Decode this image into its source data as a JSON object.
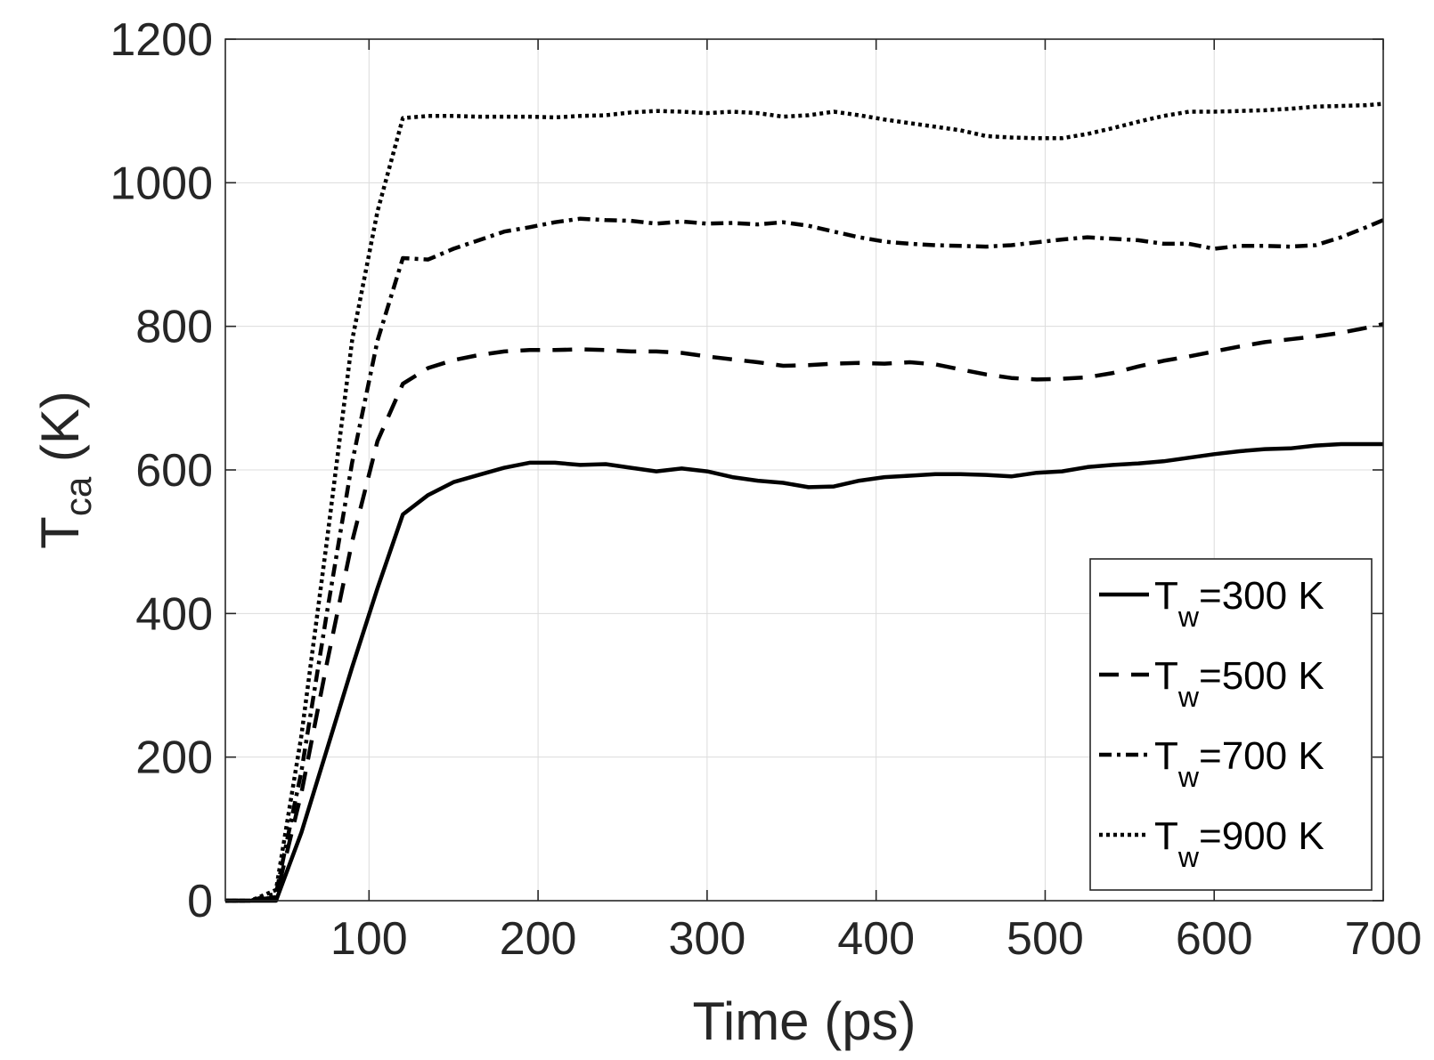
{
  "chart_data": {
    "type": "line",
    "title": "",
    "xlabel": "Time (ps)",
    "ylabel_main": "T",
    "ylabel_sub": "ca",
    "ylabel_unit": " (K)",
    "xlim": [
      15,
      700
    ],
    "ylim": [
      0,
      1200
    ],
    "xticks": [
      100,
      200,
      300,
      400,
      500,
      600,
      700
    ],
    "yticks": [
      0,
      200,
      400,
      600,
      800,
      1000,
      1200
    ],
    "grid": true,
    "legend_position": "bottom-right",
    "series": [
      {
        "name": "Tw=300 K",
        "legend_main": "T",
        "legend_sub": "w",
        "legend_rest": "=300 K",
        "style": "solid",
        "x": [
          15,
          30,
          45,
          60,
          75,
          90,
          105,
          120,
          135,
          150,
          165,
          180,
          195,
          210,
          225,
          240,
          255,
          270,
          285,
          300,
          315,
          330,
          345,
          360,
          375,
          390,
          405,
          420,
          435,
          450,
          465,
          480,
          495,
          510,
          525,
          540,
          555,
          570,
          585,
          600,
          615,
          630,
          645,
          660,
          675,
          690,
          700
        ],
        "y": [
          0,
          0,
          0,
          95,
          210,
          325,
          435,
          538,
          565,
          583,
          593,
          603,
          610,
          610,
          607,
          608,
          603,
          598,
          602,
          598,
          590,
          585,
          582,
          576,
          577,
          585,
          590,
          592,
          594,
          594,
          593,
          591,
          596,
          598,
          604,
          607,
          609,
          612,
          617,
          622,
          626,
          629,
          630,
          634,
          636,
          636,
          636
        ]
      },
      {
        "name": "Tw=500 K",
        "legend_main": "T",
        "legend_sub": "w",
        "legend_rest": "=500 K",
        "style": "dashed",
        "x": [
          15,
          30,
          45,
          60,
          75,
          90,
          105,
          120,
          135,
          150,
          165,
          180,
          195,
          210,
          225,
          240,
          255,
          270,
          285,
          300,
          315,
          330,
          345,
          360,
          375,
          390,
          405,
          420,
          435,
          450,
          465,
          480,
          495,
          510,
          525,
          540,
          555,
          570,
          585,
          600,
          615,
          630,
          645,
          660,
          675,
          690,
          700
        ],
        "y": [
          0,
          0,
          5,
          150,
          330,
          500,
          640,
          720,
          742,
          753,
          760,
          765,
          767,
          767,
          768,
          767,
          765,
          765,
          763,
          758,
          754,
          750,
          745,
          746,
          748,
          749,
          748,
          750,
          747,
          740,
          733,
          728,
          726,
          727,
          729,
          735,
          744,
          752,
          758,
          765,
          772,
          778,
          782,
          786,
          791,
          798,
          803
        ]
      },
      {
        "name": "Tw=700 K",
        "legend_main": "T",
        "legend_sub": "w",
        "legend_rest": "=700 K",
        "style": "dashdot",
        "x": [
          15,
          30,
          45,
          60,
          75,
          90,
          105,
          120,
          135,
          150,
          165,
          180,
          195,
          210,
          225,
          240,
          255,
          270,
          285,
          300,
          315,
          330,
          345,
          360,
          375,
          390,
          405,
          420,
          435,
          450,
          465,
          480,
          495,
          510,
          525,
          540,
          555,
          570,
          585,
          600,
          615,
          630,
          645,
          660,
          675,
          690,
          700
        ],
        "y": [
          0,
          0,
          10,
          180,
          400,
          610,
          780,
          895,
          893,
          908,
          920,
          932,
          938,
          945,
          950,
          948,
          947,
          943,
          946,
          943,
          944,
          942,
          945,
          940,
          932,
          924,
          918,
          915,
          913,
          912,
          911,
          913,
          917,
          921,
          924,
          922,
          920,
          915,
          915,
          908,
          912,
          912,
          911,
          913,
          924,
          938,
          948
        ]
      },
      {
        "name": "Tw=900 K",
        "legend_main": "T",
        "legend_sub": "w",
        "legend_rest": "=900 K",
        "style": "dotted",
        "x": [
          15,
          30,
          45,
          60,
          75,
          90,
          105,
          120,
          135,
          150,
          165,
          180,
          195,
          210,
          225,
          240,
          255,
          270,
          285,
          300,
          315,
          330,
          345,
          360,
          375,
          390,
          405,
          420,
          435,
          450,
          465,
          480,
          495,
          510,
          525,
          540,
          555,
          570,
          585,
          600,
          615,
          630,
          645,
          660,
          675,
          690,
          700
        ],
        "y": [
          0,
          0,
          15,
          230,
          500,
          780,
          960,
          1090,
          1093,
          1093,
          1092,
          1092,
          1092,
          1091,
          1093,
          1094,
          1098,
          1100,
          1099,
          1097,
          1099,
          1097,
          1092,
          1094,
          1099,
          1094,
          1088,
          1083,
          1078,
          1073,
          1065,
          1063,
          1062,
          1062,
          1068,
          1076,
          1085,
          1093,
          1099,
          1099,
          1100,
          1101,
          1103,
          1106,
          1107,
          1108,
          1110
        ]
      }
    ]
  }
}
